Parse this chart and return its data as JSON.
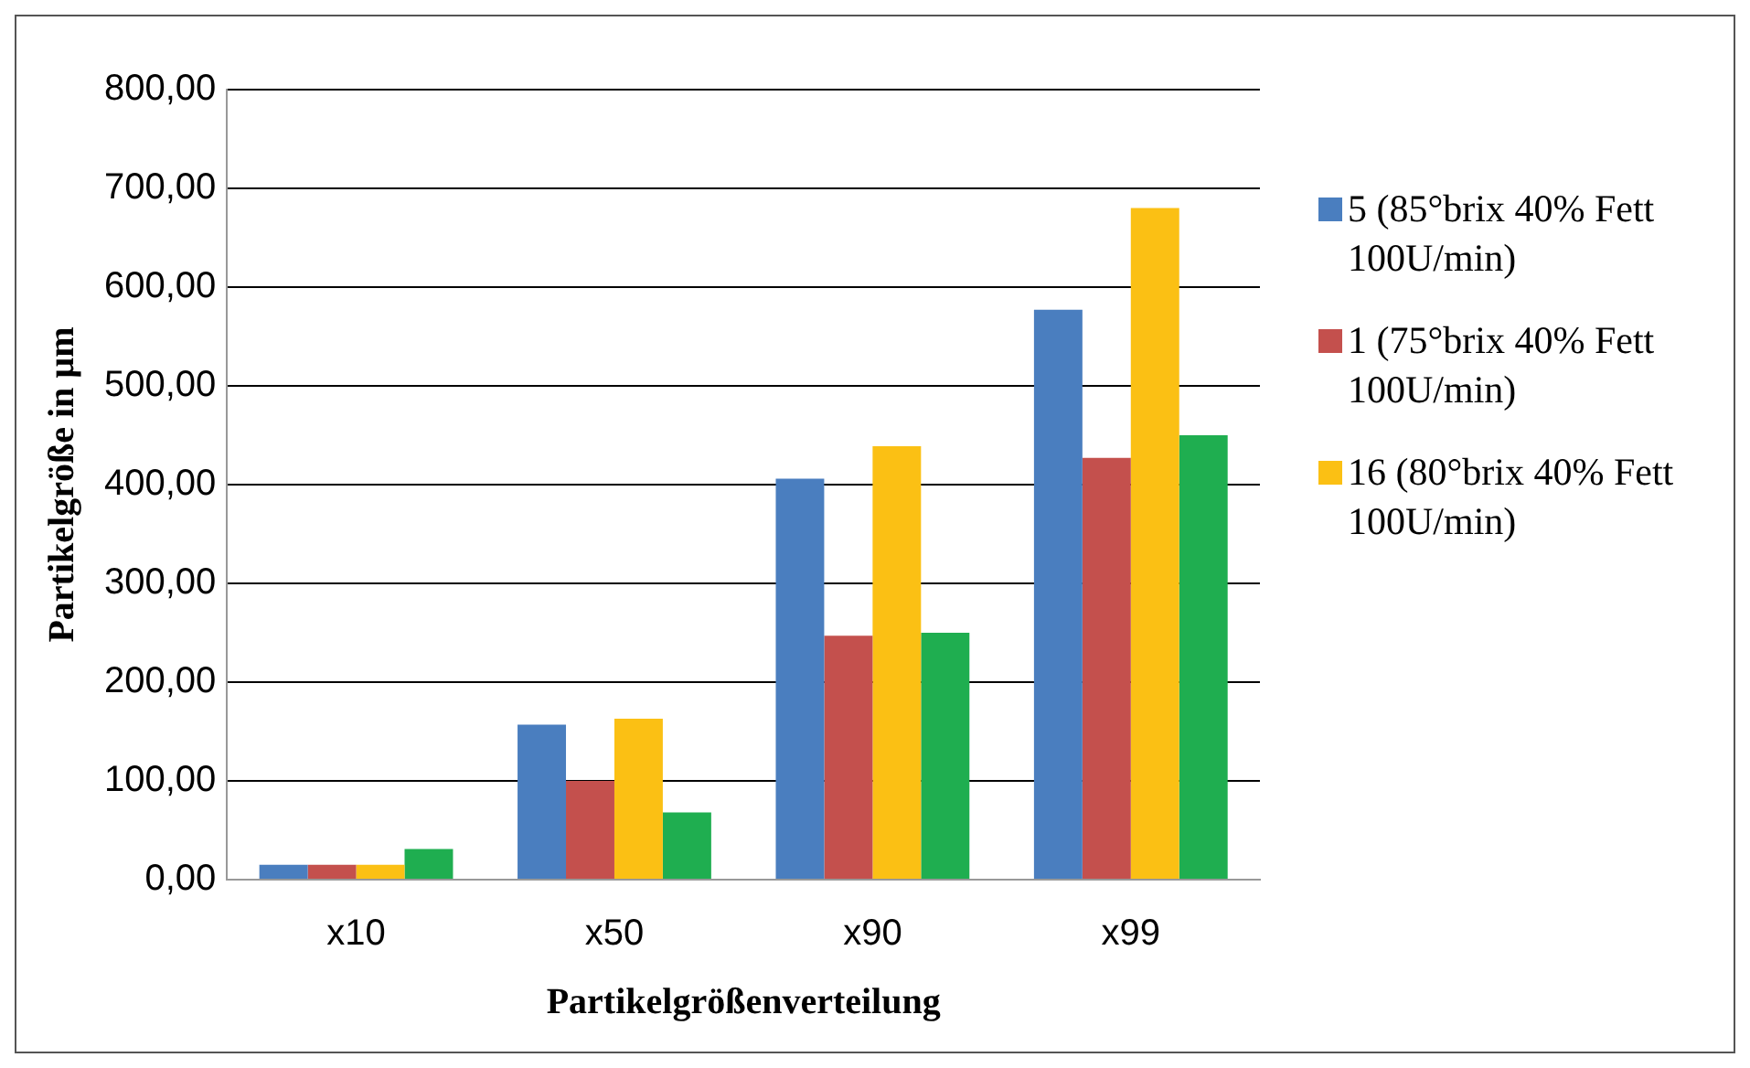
{
  "chart_data": {
    "type": "bar",
    "xlabel": "Partikelgrößenverteilung",
    "ylabel": "Partikelgröße in µm",
    "categories": [
      "x10",
      "x50",
      "x90",
      "x99"
    ],
    "series": [
      {
        "name": "5 (85°brix 40% Fett 100U/min)",
        "color": "#4a7ebf",
        "values": [
          15,
          157,
          406,
          577
        ]
      },
      {
        "name": "1 (75°brix 40% Fett 100U/min)",
        "color": "#c4504d",
        "values": [
          15,
          100,
          247,
          427
        ]
      },
      {
        "name": "16 (80°brix 40% Fett 100U/min)",
        "color": "#fbc014",
        "values": [
          15,
          163,
          439,
          680
        ]
      },
      {
        "color": "#1fae50",
        "values": [
          31,
          68,
          250,
          450
        ]
      }
    ],
    "ylim": [
      0,
      800
    ],
    "yticks": [
      {
        "value": 0,
        "label": "0,00"
      },
      {
        "value": 100,
        "label": "100,00"
      },
      {
        "value": 200,
        "label": "200,00"
      },
      {
        "value": 300,
        "label": "300,00"
      },
      {
        "value": 400,
        "label": "400,00"
      },
      {
        "value": 500,
        "label": "500,00"
      },
      {
        "value": 600,
        "label": "600,00"
      },
      {
        "value": 700,
        "label": "700,00"
      },
      {
        "value": 800,
        "label": "800,00"
      }
    ],
    "grid": "y",
    "legend": "right"
  }
}
